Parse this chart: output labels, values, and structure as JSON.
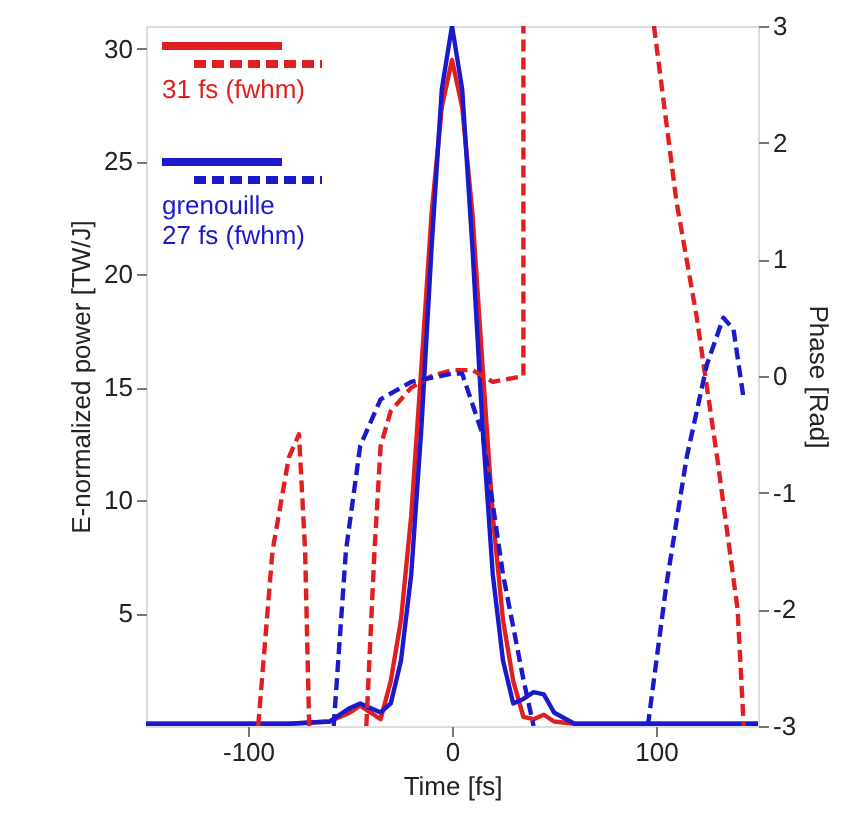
{
  "chart_data": {
    "type": "line",
    "xlabel": "Time [fs]",
    "ylabel": "E-normalized power [TW/J]",
    "y2label": "Phase [Rad]",
    "xlim": [
      -150,
      150
    ],
    "xticks": [
      -100,
      0,
      100
    ],
    "ylim": [
      0,
      31
    ],
    "yticks": [
      5,
      10,
      15,
      20,
      25,
      30
    ],
    "y2lim": [
      -3,
      3
    ],
    "y2ticks": [
      -3,
      -2,
      -1,
      0,
      1,
      2,
      3
    ],
    "grid": false,
    "legend": "top left",
    "line_style": "solid",
    "marker": "none",
    "series": [
      {
        "name": "31 fs (fwhm)",
        "color": "#e02020",
        "x": [
          -150,
          -80,
          -60,
          -50,
          -45,
          -40,
          -35,
          -30,
          -25,
          -20,
          -15,
          -10,
          -5,
          0,
          5,
          10,
          15,
          20,
          25,
          30,
          35,
          40,
          45,
          50,
          60,
          150
        ],
        "values": [
          0.1,
          0.1,
          0.2,
          0.6,
          0.9,
          0.6,
          0.3,
          2.0,
          4.7,
          9.3,
          15.9,
          22.7,
          27.4,
          29.5,
          27.4,
          22.7,
          15.9,
          9.3,
          4.7,
          2.0,
          0.4,
          0.3,
          0.5,
          0.2,
          0.1,
          0.1
        ]
      },
      {
        "color": "#e02020",
        "line_style": "dashed",
        "axis": "y2",
        "x": [
          -95,
          -88,
          -80,
          -75,
          -72,
          -70,
          -60,
          -42,
          -38,
          -35,
          -30,
          -20,
          -10,
          0,
          10,
          20,
          35,
          35,
          60,
          99,
          110,
          120,
          130,
          140,
          143
        ],
        "values": [
          -3,
          -1.5,
          -0.7,
          -0.5,
          -1.5,
          -3,
          null,
          -3,
          -1.5,
          -0.6,
          -0.3,
          -0.1,
          0,
          0.05,
          0.05,
          -0.05,
          0,
          3,
          null,
          3,
          1.5,
          0.5,
          -0.7,
          -2,
          -3
        ]
      },
      {
        "name": "grenouille\n27 fs (fwhm)",
        "color": "#1a1acc",
        "x": [
          -150,
          -80,
          -60,
          -50,
          -45,
          -40,
          -35,
          -30,
          -25,
          -20,
          -15,
          -10,
          -5,
          0,
          5,
          10,
          15,
          20,
          25,
          30,
          35,
          40,
          45,
          50,
          60,
          150
        ],
        "values": [
          0.1,
          0.1,
          0.2,
          0.8,
          1.0,
          0.8,
          0.6,
          1.0,
          2.9,
          6.7,
          13.2,
          21.2,
          28.2,
          31,
          28.2,
          21.2,
          13.2,
          6.7,
          2.9,
          1.0,
          1.2,
          1.5,
          1.4,
          0.6,
          0.1,
          0.1
        ]
      },
      {
        "color": "#1a1acc",
        "line_style": "dashed",
        "axis": "y2",
        "x": [
          -58,
          -52,
          -45,
          -35,
          -20,
          0,
          5,
          15,
          25,
          35,
          40,
          70,
          96,
          105,
          115,
          125,
          133,
          138,
          143
        ],
        "values": [
          -3,
          -1.5,
          -0.6,
          -0.2,
          -0.05,
          0.02,
          0.02,
          -0.5,
          -1.7,
          -2.6,
          -3,
          null,
          -3,
          -1.8,
          -0.7,
          0.1,
          0.5,
          0.4,
          -0.2
        ]
      }
    ]
  }
}
